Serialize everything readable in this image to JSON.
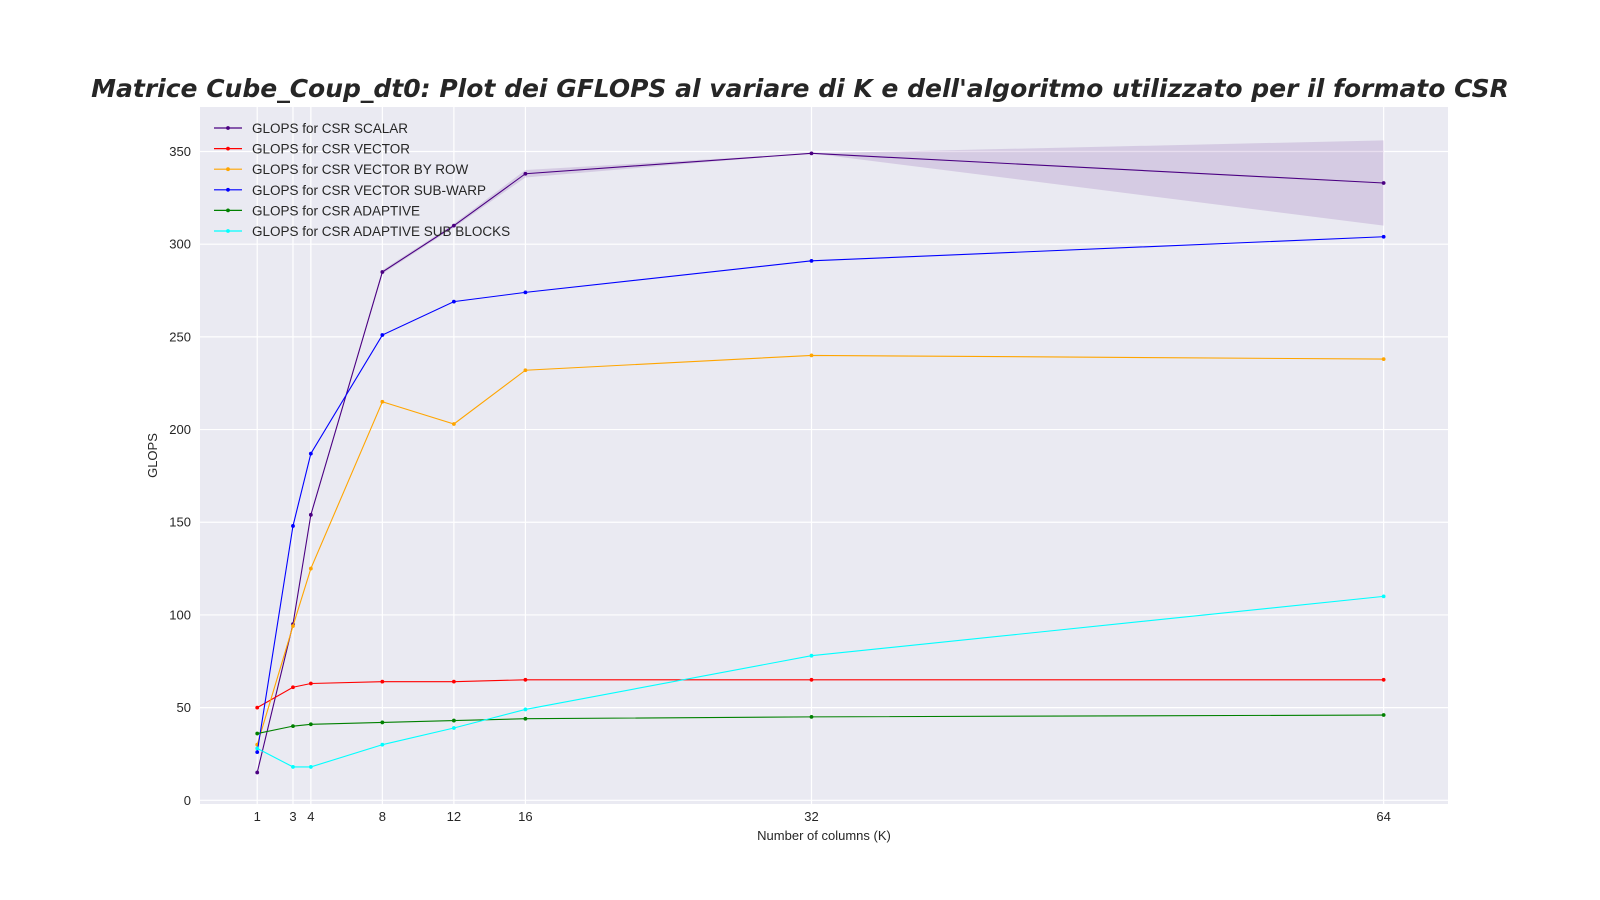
{
  "chart_data": {
    "type": "line",
    "title": "Matrice Cube_Coup_dt0: Plot dei GFLOPS al variare di K e dell'algoritmo utilizzato per il formato CSR",
    "xlabel": "Number of columns (K)",
    "ylabel": "GLOPS",
    "x": [
      1,
      3,
      4,
      8,
      12,
      16,
      32,
      64
    ],
    "xticks": [
      1,
      3,
      4,
      8,
      12,
      16,
      32,
      64
    ],
    "yticks": [
      0,
      50,
      100,
      150,
      200,
      250,
      300,
      350
    ],
    "xlim": [
      -2.2,
      67.6
    ],
    "ylim": [
      -2,
      374
    ],
    "grid": true,
    "legend_position": "top-left",
    "series": [
      {
        "name": "GLOPS for CSR SCALAR",
        "color": "#4b0082",
        "values": [
          15,
          95,
          154,
          285,
          310,
          338,
          349,
          333
        ],
        "band_low": [
          15,
          95,
          154,
          284,
          309,
          336,
          349,
          310
        ],
        "band_high": [
          15,
          95,
          154,
          286,
          311,
          340,
          349,
          356
        ]
      },
      {
        "name": "GLOPS for CSR VECTOR",
        "color": "#ff0000",
        "values": [
          50,
          61,
          63,
          64,
          64,
          65,
          65,
          65
        ]
      },
      {
        "name": "GLOPS for CSR VECTOR BY ROW",
        "color": "#ffa500",
        "values": [
          30,
          94,
          125,
          215,
          203,
          232,
          240,
          238
        ]
      },
      {
        "name": "GLOPS for CSR VECTOR SUB-WARP",
        "color": "#0000ff",
        "values": [
          26,
          148,
          187,
          251,
          269,
          274,
          291,
          304
        ]
      },
      {
        "name": "GLOPS for CSR ADAPTIVE",
        "color": "#008000",
        "values": [
          36,
          40,
          41,
          42,
          43,
          44,
          45,
          46
        ]
      },
      {
        "name": "GLOPS for CSR ADAPTIVE SUB BLOCKS",
        "color": "#00ffff",
        "values": [
          28,
          18,
          18,
          30,
          39,
          49,
          78,
          110
        ]
      }
    ]
  }
}
